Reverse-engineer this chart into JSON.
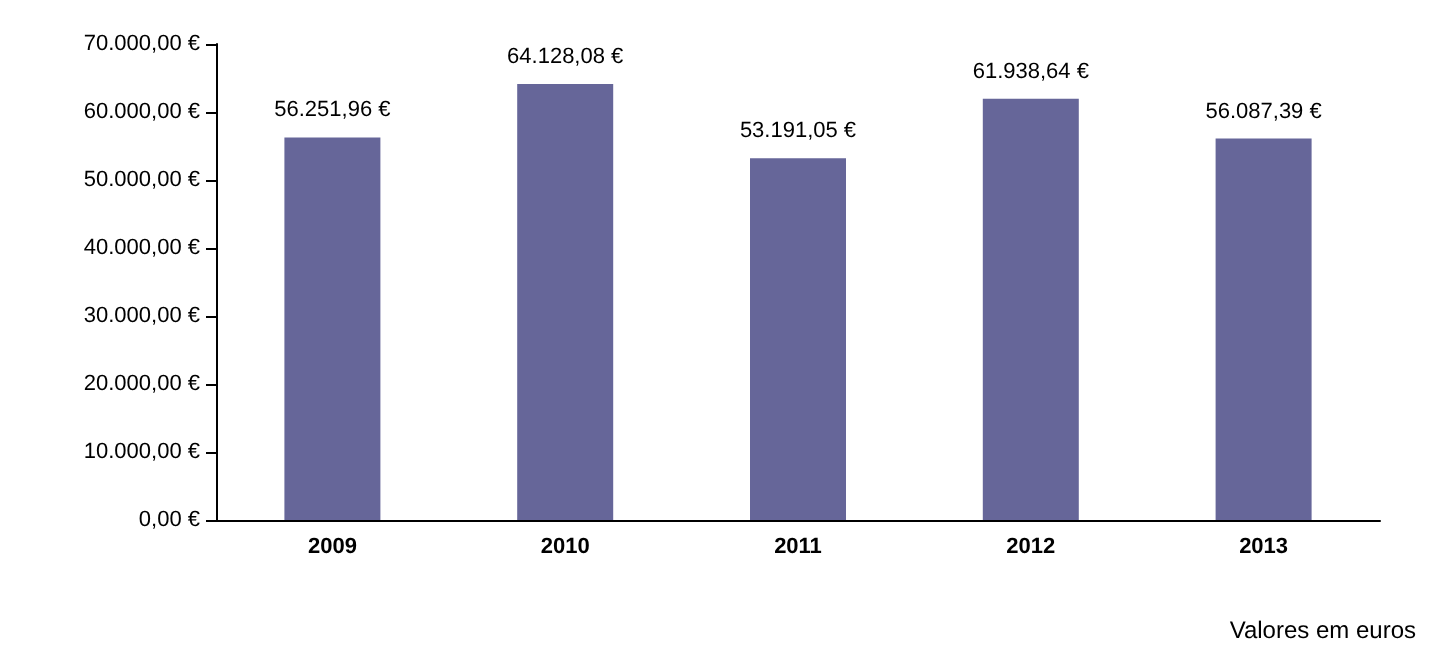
{
  "chart_data": {
    "type": "bar",
    "categories": [
      "2009",
      "2010",
      "2011",
      "2012",
      "2013"
    ],
    "values": [
      56251.96,
      64128.08,
      53191.05,
      61938.64,
      56087.39
    ],
    "value_labels": [
      "56.251,96 €",
      "64.128,08 €",
      "53.191,05 €",
      "61.938,64 €",
      "56.087,39 €"
    ],
    "color": "#666699",
    "ylim": [
      0,
      70000
    ],
    "yticks": [
      {
        "value": 0,
        "label": "0,00 €"
      },
      {
        "value": 10000,
        "label": "10.000,00 €"
      },
      {
        "value": 20000,
        "label": "20.000,00 €"
      },
      {
        "value": 30000,
        "label": "30.000,00 €"
      },
      {
        "value": 40000,
        "label": "40.000,00 €"
      },
      {
        "value": 50000,
        "label": "50.000,00 €"
      },
      {
        "value": 60000,
        "label": "60.000,00 €"
      },
      {
        "value": 70000,
        "label": "70.000,00 €"
      }
    ],
    "grid": false,
    "annotations": [
      "Valores em euros"
    ]
  }
}
